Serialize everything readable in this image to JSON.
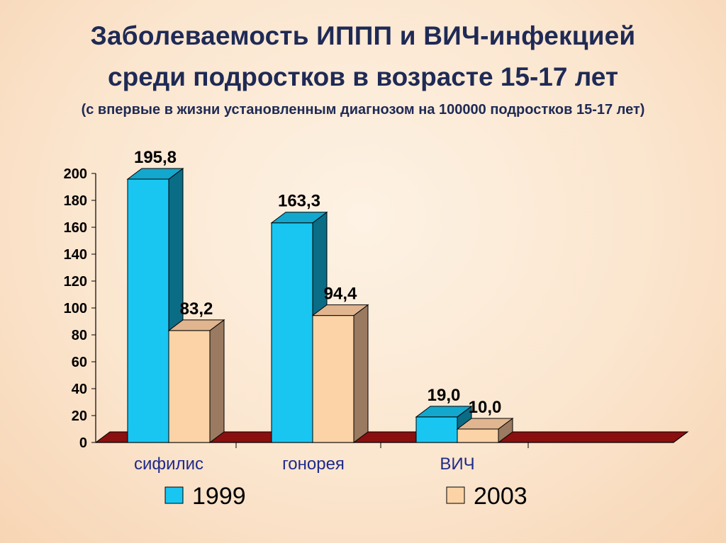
{
  "title_line1": "Заболеваемость ИППП и ВИЧ-инфекцией",
  "title_line2": "среди подростков в возрасте  15-17 лет",
  "subtitle": "(с впервые в жизни установленным диагнозом на 100000  подростков 15-17 лет)",
  "chart_data": {
    "type": "bar",
    "title": "Заболеваемость ИППП и ВИЧ-инфекцией среди подростков в возрасте  15-17 лет",
    "subtitle": "(с впервые в жизни установленным диагнозом на 100000  подростков 15-17 лет)",
    "categories": [
      "сифилис",
      "гонорея",
      "ВИЧ"
    ],
    "series": [
      {
        "name": "1999",
        "values": [
          195.8,
          163.3,
          19.0
        ],
        "labels": [
          "195,8",
          "163,3",
          "19,0"
        ],
        "color": "#19c6f2"
      },
      {
        "name": "2003",
        "values": [
          83.2,
          94.4,
          10.0
        ],
        "labels": [
          "83,2",
          "94,4",
          "10,0"
        ],
        "color": "#fbd3a6"
      }
    ],
    "yticks": [
      "0",
      "20",
      "40",
      "60",
      "80",
      "100",
      "120",
      "140",
      "160",
      "180",
      "200"
    ],
    "ylim": [
      0,
      200
    ],
    "xlabel": "",
    "ylabel": "",
    "legend_position": "bottom",
    "grid": false,
    "style": "3d"
  }
}
